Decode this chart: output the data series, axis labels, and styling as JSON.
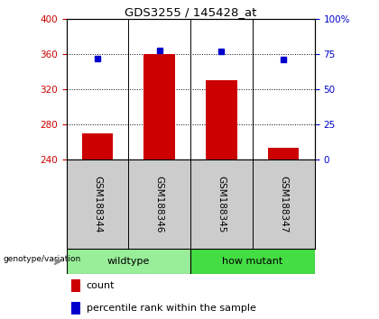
{
  "title": "GDS3255 / 145428_at",
  "samples": [
    "GSM188344",
    "GSM188346",
    "GSM188345",
    "GSM188347"
  ],
  "counts": [
    270,
    360,
    330,
    253
  ],
  "percentiles": [
    72,
    78,
    77,
    71
  ],
  "ylim_left": [
    240,
    400
  ],
  "ylim_right": [
    0,
    100
  ],
  "yticks_left": [
    240,
    280,
    320,
    360,
    400
  ],
  "yticks_right": [
    0,
    25,
    50,
    75,
    100
  ],
  "ytick_labels_right": [
    "0",
    "25",
    "50",
    "75",
    "100%"
  ],
  "groups": [
    {
      "label": "wildtype",
      "color": "#99ee99"
    },
    {
      "label": "how mutant",
      "color": "#44dd44"
    }
  ],
  "bar_color": "#cc0000",
  "dot_color": "#0000cc",
  "bar_width": 0.5,
  "baseline": 240,
  "bg_label_row": "#cccccc",
  "label_color_left": "#cc0000",
  "label_color_right": "#0000cc",
  "genotype_label": "genotype/variation",
  "legend_count": "count",
  "legend_percentile": "percentile rank within the sample"
}
